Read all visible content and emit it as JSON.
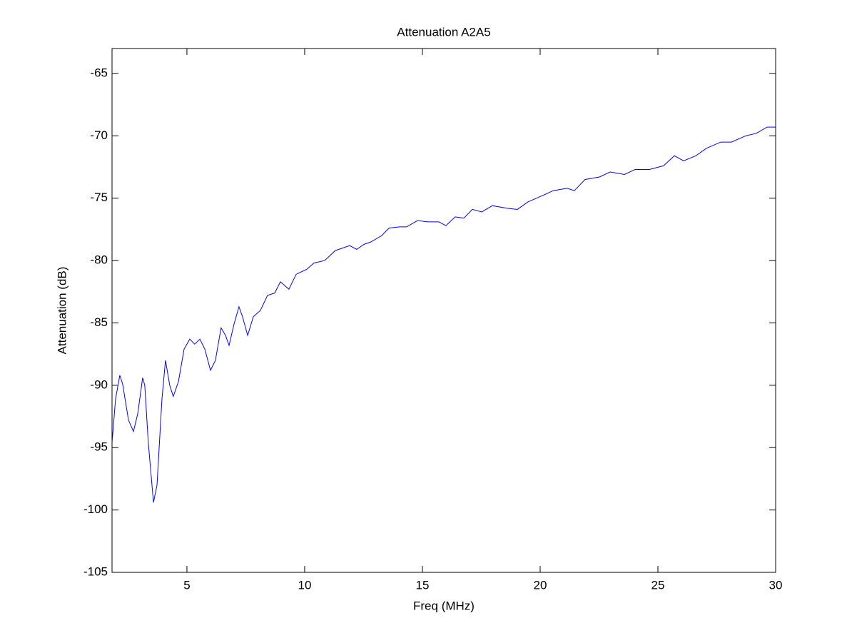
{
  "chart_data": {
    "type": "line",
    "title": "Attenuation A2A5",
    "xlabel": "Freq (MHz)",
    "ylabel": "Attenuation (dB)",
    "x": [
      1.82,
      1.97,
      2.15,
      2.27,
      2.52,
      2.73,
      2.91,
      3.12,
      3.21,
      3.36,
      3.58,
      3.73,
      3.94,
      4.09,
      4.27,
      4.42,
      4.64,
      4.88,
      5.12,
      5.33,
      5.55,
      5.76,
      6.0,
      6.21,
      6.45,
      6.64,
      6.79,
      7.0,
      7.21,
      7.36,
      7.58,
      7.82,
      8.12,
      8.42,
      8.73,
      8.97,
      9.33,
      9.64,
      10.09,
      10.39,
      10.85,
      11.3,
      11.91,
      12.21,
      12.52,
      12.82,
      13.27,
      13.58,
      14.03,
      14.33,
      14.79,
      15.24,
      15.7,
      16.0,
      16.39,
      16.76,
      17.12,
      17.52,
      17.97,
      18.58,
      19.03,
      19.48,
      20.09,
      20.55,
      21.15,
      21.45,
      21.91,
      22.52,
      22.97,
      23.58,
      24.03,
      24.64,
      25.24,
      25.7,
      26.09,
      26.61,
      27.06,
      27.67,
      28.12,
      28.73,
      29.18,
      29.64,
      30
    ],
    "series": [
      {
        "name": "A2A5",
        "color": "#0000ff",
        "values": [
          -94.6,
          -91.1,
          -89.2,
          -89.9,
          -92.8,
          -93.7,
          -92.3,
          -89.4,
          -90.0,
          -94.6,
          -99.4,
          -98.0,
          -91.1,
          -88.0,
          -90.0,
          -90.9,
          -89.7,
          -87.1,
          -86.3,
          -86.7,
          -86.3,
          -87.1,
          -88.8,
          -88.0,
          -85.4,
          -86.0,
          -86.8,
          -85.1,
          -83.7,
          -84.5,
          -86.0,
          -84.5,
          -84.0,
          -82.8,
          -82.6,
          -81.7,
          -82.3,
          -81.1,
          -80.7,
          -80.2,
          -80.0,
          -79.2,
          -78.8,
          -79.1,
          -78.7,
          -78.5,
          -78.0,
          -77.4,
          -77.3,
          -77.3,
          -76.8,
          -76.9,
          -76.9,
          -77.2,
          -76.5,
          -76.6,
          -75.9,
          -76.1,
          -75.6,
          -75.8,
          -75.9,
          -75.3,
          -74.8,
          -74.4,
          -74.2,
          -74.4,
          -73.5,
          -73.3,
          -72.9,
          -73.1,
          -72.7,
          -72.7,
          -72.4,
          -71.6,
          -72.0,
          -71.6,
          -71.0,
          -70.5,
          -70.5,
          -70.0,
          -69.8,
          -69.3,
          -69.3
        ]
      }
    ],
    "xlim": [
      1.82,
      30
    ],
    "xticks": [
      5,
      10,
      15,
      20,
      25,
      30
    ],
    "ylim": [
      -105,
      -63
    ],
    "yticks": [
      -105,
      -100,
      -95,
      -90,
      -85,
      -80,
      -75,
      -70,
      -65
    ],
    "grid": false
  }
}
